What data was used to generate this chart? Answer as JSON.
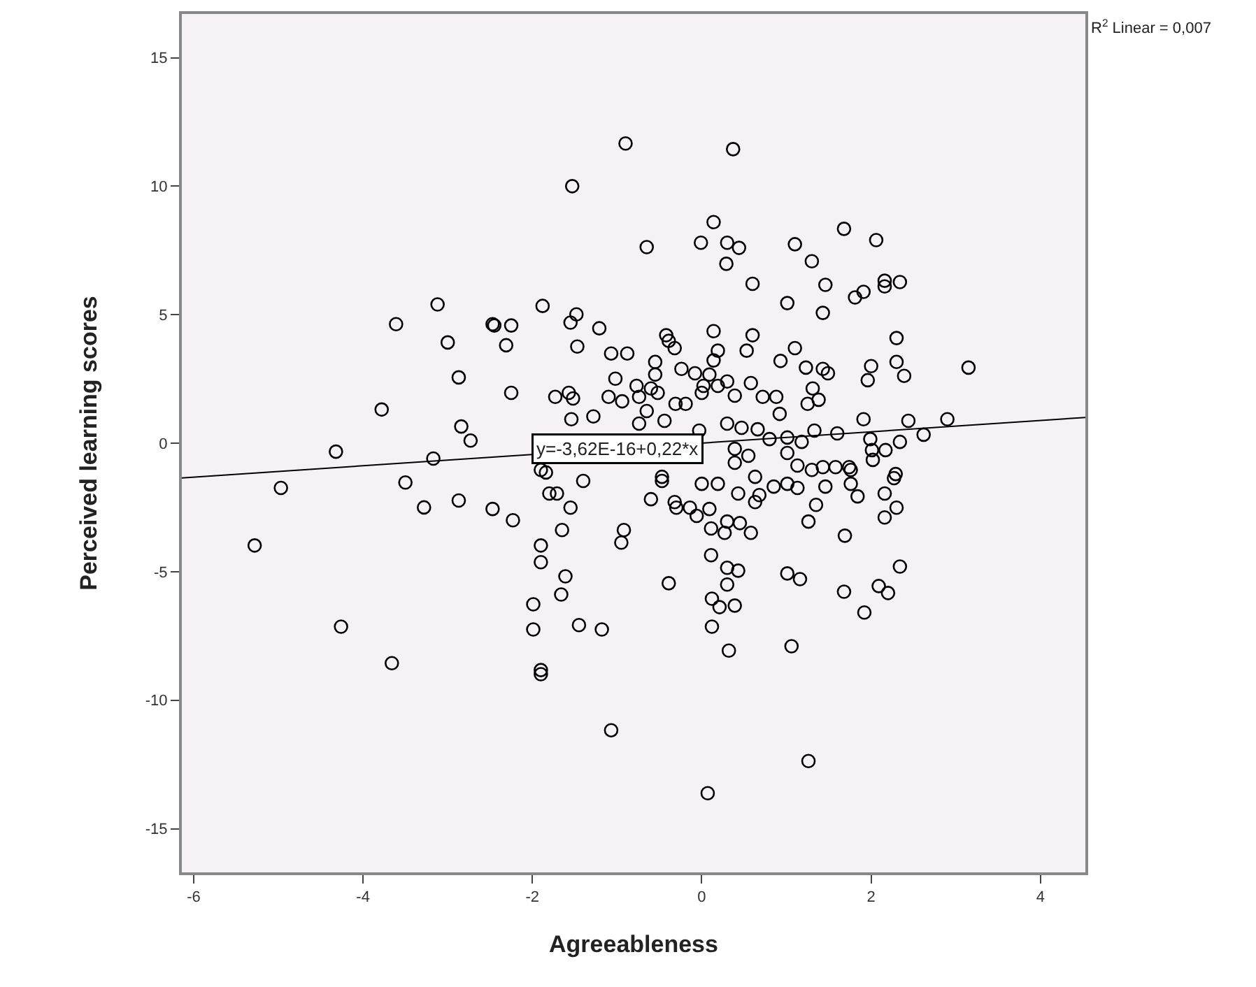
{
  "chart_data": {
    "type": "scatter",
    "xlabel": "Agreeableness",
    "ylabel": "Perceived learning scores",
    "xlim": [
      -6.14,
      4.53
    ],
    "ylim": [
      -16.7,
      16.7
    ],
    "xticks": [
      -6,
      -4,
      -2,
      0,
      2,
      4
    ],
    "yticks": [
      -15,
      -10,
      -5,
      0,
      5,
      10,
      15
    ],
    "grid": false,
    "series": [
      {
        "color": "#000000",
        "marker": "circle",
        "x": [
          -4.97,
          -5.28,
          -4.26,
          -3.66,
          -3.5,
          -3.28,
          -2.87,
          -2.47,
          -3.12,
          -3.61,
          -2.47,
          -3.0,
          -2.87,
          -3.78,
          -2.84,
          -2.73,
          -4.32,
          -3.17,
          -0.9,
          0.37,
          -1.53,
          0.14,
          -0.65,
          -0.01,
          0.3,
          0.44,
          0.29,
          1.1,
          1.3,
          0.6,
          1.01,
          -1.88,
          -2.45,
          -2.25,
          -2.31,
          -1.48,
          -1.55,
          -1.21,
          -1.47,
          -0.42,
          -0.39,
          -0.32,
          0.14,
          0.6,
          0.19,
          0.53,
          1.1,
          0.93,
          1.23,
          -1.07,
          -0.88,
          -0.55,
          -1.02,
          -0.55,
          -0.24,
          -0.08,
          0.09,
          0.14,
          0.3,
          0.58,
          -0.77,
          -0.6,
          0.02,
          0.19,
          -2.25,
          -1.73,
          -1.57,
          -1.52,
          -1.1,
          -0.94,
          -0.74,
          -0.52,
          -0.31,
          -0.19,
          0.0,
          0.39,
          0.72,
          0.88,
          0.92,
          1.25,
          -1.54,
          -1.28,
          -0.65,
          -0.44,
          -0.74,
          -0.03,
          0.3,
          0.47,
          0.66,
          0.8,
          1.01,
          1.18,
          0.39,
          0.55,
          0.39,
          1.01,
          1.13,
          -1.84,
          -0.47,
          -2.23,
          -1.9,
          -1.8,
          -1.71,
          -1.4,
          -1.55,
          -1.65,
          -1.9,
          -1.9,
          -1.61,
          -1.66,
          -1.99,
          -1.99,
          -1.45,
          -1.18,
          -1.9,
          -1.9,
          -1.07,
          -0.92,
          -0.95,
          -0.47,
          -0.6,
          -0.32,
          -0.3,
          -0.14,
          0.0,
          -0.06,
          0.09,
          0.11,
          0.27,
          0.19,
          0.3,
          0.45,
          0.58,
          0.43,
          0.63,
          0.68,
          0.85,
          1.01,
          1.13,
          0.63,
          0.11,
          -0.39,
          0.3,
          0.43,
          0.3,
          0.12,
          0.21,
          0.39,
          0.12,
          0.32,
          1.01,
          1.16,
          1.06,
          1.26,
          0.07,
          1.26,
          1.68,
          2.06,
          1.46,
          1.81,
          1.91,
          2.16,
          2.16,
          2.34,
          1.43,
          2.3,
          2.3,
          2.0,
          1.96,
          2.39,
          3.15,
          1.43,
          1.49,
          1.31,
          1.38,
          1.91,
          2.44,
          2.9,
          2.62,
          1.6,
          1.33,
          1.99,
          2.34,
          2.17,
          2.01,
          2.02,
          2.29,
          1.43,
          1.58,
          1.74,
          1.3,
          1.76,
          1.46,
          1.76,
          1.84,
          1.35,
          2.27,
          2.16,
          2.3,
          2.16,
          1.69,
          2.34,
          1.68,
          2.09,
          2.2,
          1.92
        ],
        "values": [
          -1.74,
          -3.98,
          -7.14,
          -8.56,
          -1.53,
          -2.5,
          -2.23,
          -2.56,
          5.4,
          4.63,
          4.63,
          3.92,
          2.56,
          1.31,
          0.65,
          0.1,
          -0.33,
          -0.6,
          11.66,
          11.44,
          10.0,
          8.6,
          7.63,
          7.8,
          7.8,
          7.6,
          6.98,
          7.74,
          7.08,
          6.2,
          5.45,
          5.34,
          4.58,
          4.58,
          3.81,
          5.01,
          4.69,
          4.47,
          3.76,
          4.2,
          3.98,
          3.7,
          4.36,
          4.2,
          3.6,
          3.6,
          3.7,
          3.2,
          2.94,
          3.49,
          3.49,
          3.16,
          2.51,
          2.67,
          2.89,
          2.72,
          2.67,
          3.22,
          2.4,
          2.34,
          2.23,
          2.13,
          2.23,
          2.23,
          1.96,
          1.8,
          1.96,
          1.74,
          1.8,
          1.63,
          1.8,
          1.96,
          1.53,
          1.53,
          1.96,
          1.85,
          1.8,
          1.8,
          1.14,
          1.53,
          0.93,
          1.04,
          1.25,
          0.87,
          0.76,
          0.49,
          0.76,
          0.6,
          0.54,
          0.16,
          0.22,
          0.05,
          -0.22,
          -0.49,
          -0.76,
          -0.38,
          -0.87,
          -1.14,
          -1.31,
          -3.0,
          -1.04,
          -1.96,
          -1.96,
          -1.47,
          -2.51,
          -3.38,
          -3.98,
          -4.63,
          -5.18,
          -5.89,
          -6.27,
          -7.25,
          -7.08,
          -7.25,
          -8.99,
          -8.83,
          -11.17,
          -3.38,
          -3.87,
          -1.47,
          -2.18,
          -2.29,
          -2.51,
          -2.51,
          -1.58,
          -2.83,
          -2.56,
          -3.32,
          -3.49,
          -1.58,
          -3.05,
          -3.11,
          -3.49,
          -1.96,
          -2.29,
          -2.02,
          -1.69,
          -1.58,
          -1.74,
          -1.31,
          -4.36,
          -5.45,
          -4.85,
          -4.96,
          -5.5,
          -6.05,
          -6.38,
          -6.32,
          -7.14,
          -8.07,
          -5.07,
          -5.29,
          -7.9,
          -12.37,
          -13.62,
          -3.05,
          8.34,
          7.9,
          6.16,
          5.67,
          5.89,
          6.32,
          6.1,
          6.27,
          5.07,
          4.09,
          3.16,
          3.0,
          2.45,
          2.62,
          2.94,
          2.89,
          2.72,
          2.13,
          1.69,
          0.93,
          0.87,
          0.93,
          0.33,
          0.38,
          0.49,
          0.16,
          0.05,
          -0.27,
          -0.27,
          -0.65,
          -1.2,
          -0.93,
          -0.93,
          -0.93,
          -1.04,
          -1.04,
          -1.69,
          -1.58,
          -2.07,
          -2.4,
          -1.36,
          -1.96,
          -2.51,
          -2.89,
          -3.6,
          -4.8,
          -5.78,
          -5.56,
          -5.83,
          -6.59
        ]
      },
      {
        "type": "line",
        "color": "#000000",
        "marker": "none",
        "line_style": "solid",
        "x": [
          -6.14,
          4.53
        ],
        "values": [
          -1.35,
          1.0
        ]
      }
    ],
    "annotations": [
      {
        "text": "y=-3,62E-16+0,22*x",
        "x": -1.0,
        "y": -0.22
      },
      "R$^{2}$ Linear = 0,007"
    ]
  }
}
